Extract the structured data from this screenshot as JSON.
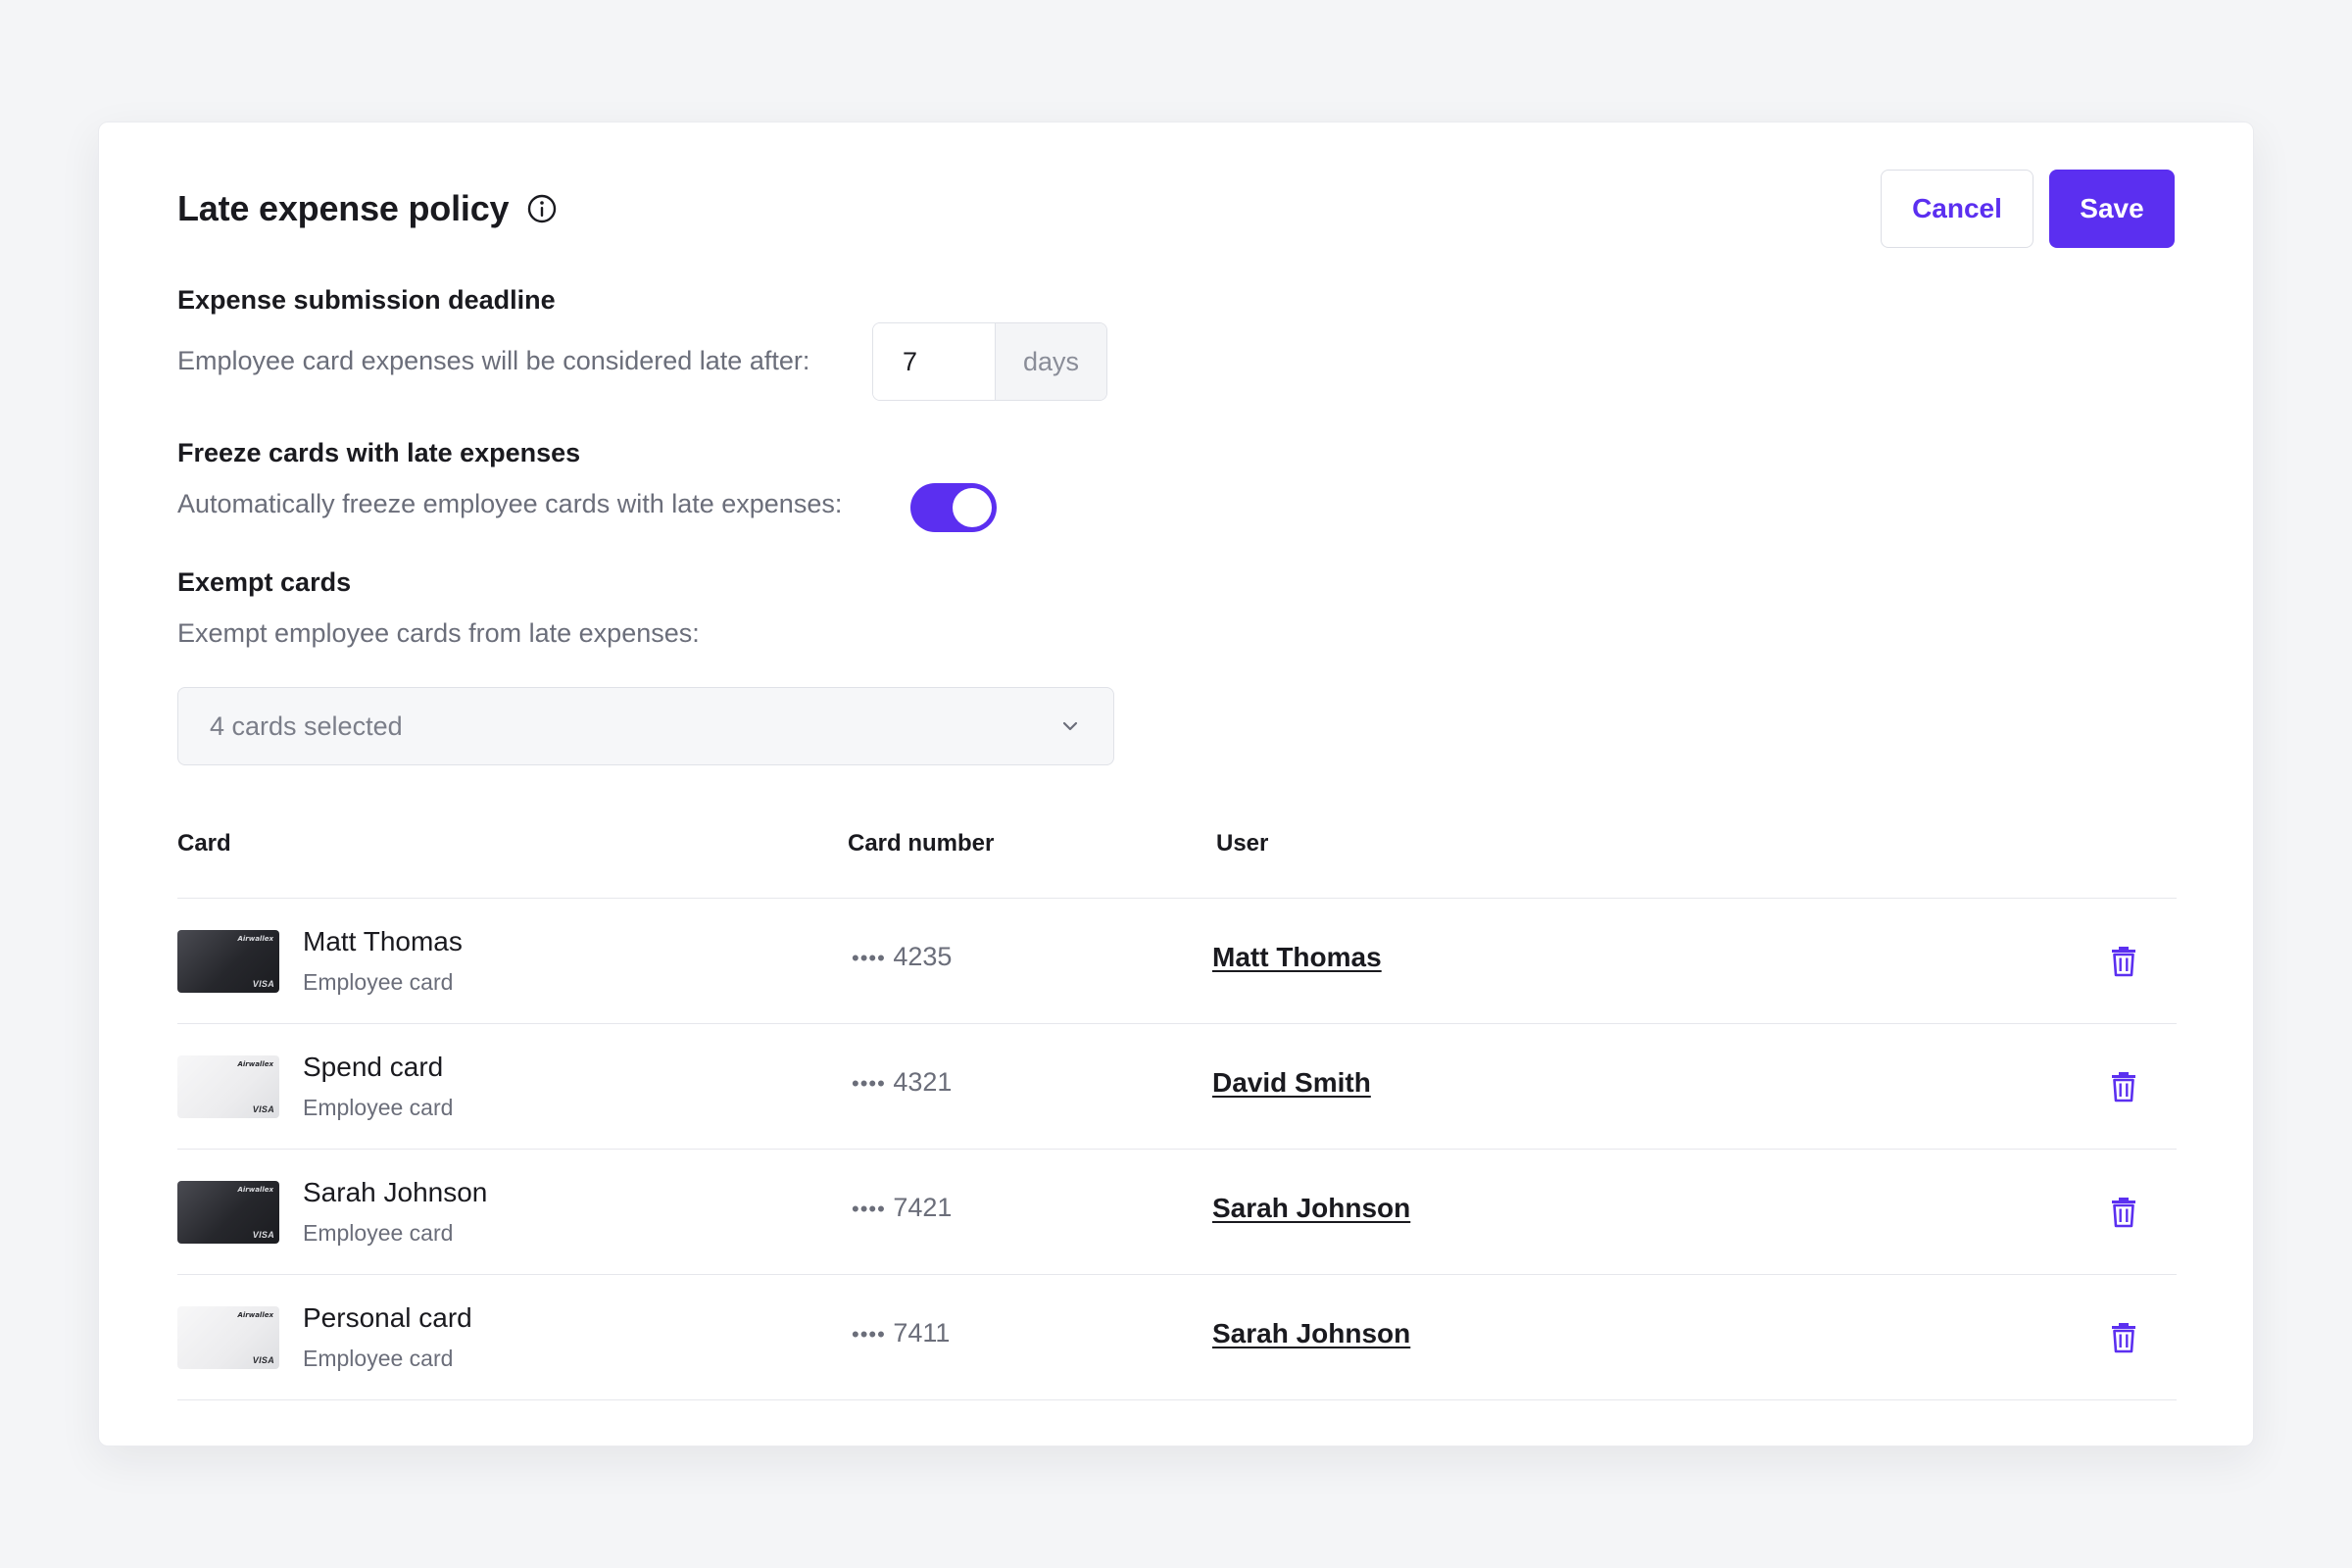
{
  "header": {
    "title": "Late expense policy",
    "cancel_label": "Cancel",
    "save_label": "Save"
  },
  "deadline": {
    "title": "Expense submission deadline",
    "description": "Employee card expenses will be considered late after:",
    "value": "7",
    "unit": "days"
  },
  "freeze": {
    "title": "Freeze cards with late expenses",
    "description": "Automatically freeze employee cards with late expenses:",
    "enabled": true
  },
  "exempt": {
    "title": "Exempt cards",
    "description": "Exempt employee cards from late expenses:",
    "selected_label": "4 cards selected"
  },
  "table": {
    "headers": {
      "card": "Card",
      "card_number": "Card number",
      "user": "User"
    },
    "rows": [
      {
        "card_name": "Matt Thomas",
        "card_type": "Employee card",
        "dots": "••••",
        "last4": "4235",
        "user": "Matt Thomas",
        "card_style": "dark"
      },
      {
        "card_name": "Spend card",
        "card_type": "Employee card",
        "dots": "••••",
        "last4": "4321",
        "user": "David Smith",
        "card_style": "light"
      },
      {
        "card_name": "Sarah Johnson",
        "card_type": "Employee card",
        "dots": "••••",
        "last4": "7421",
        "user": "Sarah Johnson",
        "card_style": "dark"
      },
      {
        "card_name": "Personal card",
        "card_type": "Employee card",
        "dots": "••••",
        "last4": "7411",
        "user": "Sarah Johnson",
        "card_style": "light"
      }
    ]
  },
  "card_art": {
    "brand": "Airwallex",
    "network": "VISA"
  },
  "colors": {
    "accent": "#5b2ff0",
    "text": "#1a1a1f",
    "muted": "#6b6e7a",
    "background": "#f4f5f7"
  }
}
